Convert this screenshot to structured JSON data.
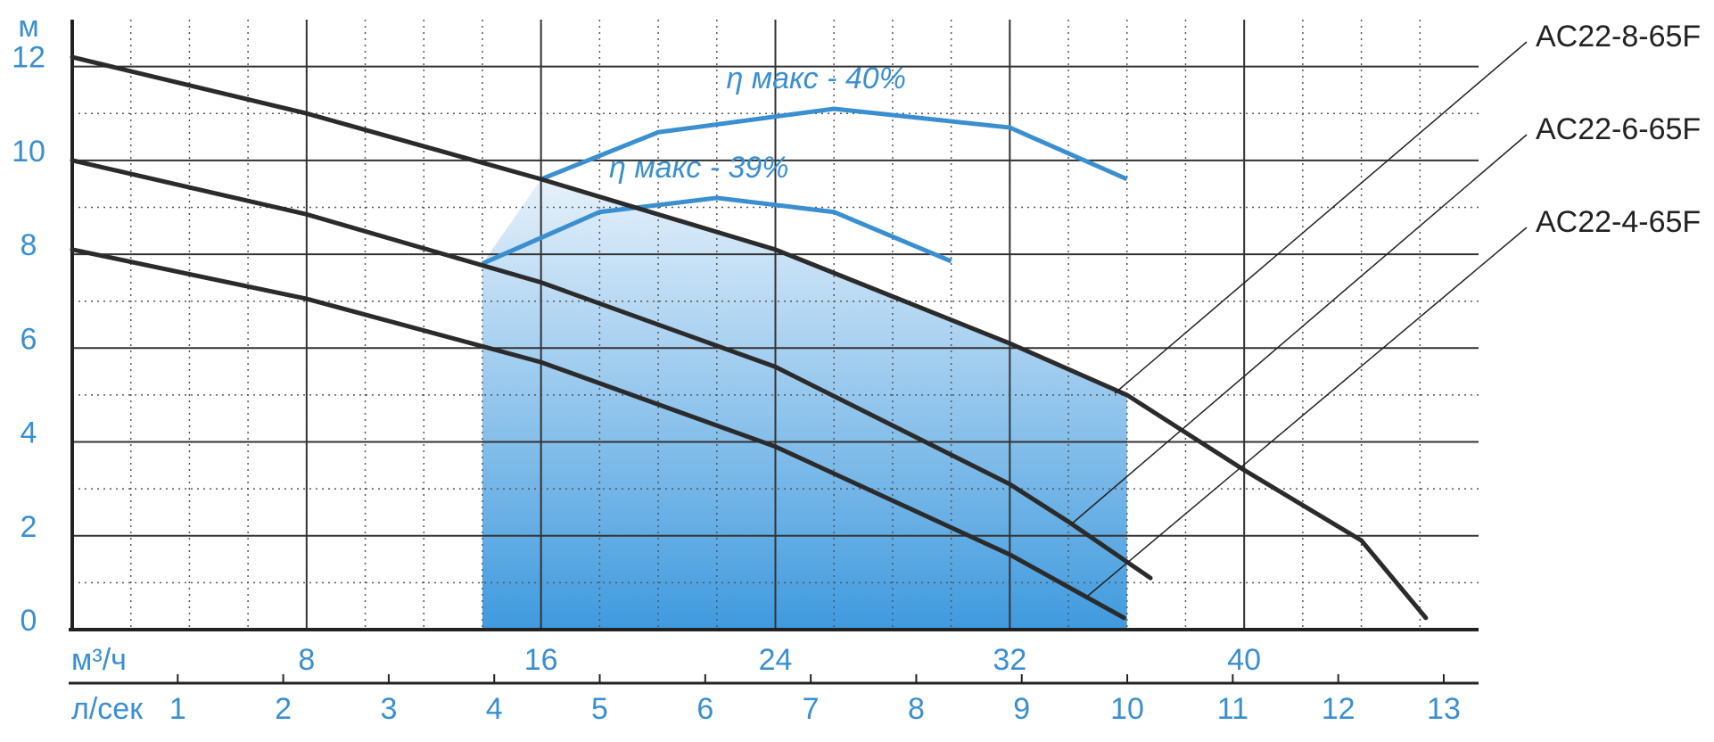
{
  "chart_data": {
    "type": "line",
    "y_label": "м",
    "x_label": "м³/ч",
    "x2_label": "л/сек",
    "xlim": [
      0,
      48
    ],
    "ylim": [
      0,
      13
    ],
    "x2lim": [
      0,
      13.33
    ],
    "xticks": [
      8,
      16,
      24,
      32,
      40
    ],
    "yticks": [
      0,
      2,
      4,
      6,
      8,
      10,
      12
    ],
    "x2ticks": [
      1,
      2,
      3,
      4,
      5,
      6,
      7,
      8,
      9,
      10,
      11,
      12,
      13
    ],
    "xminor": 2,
    "yminor": 1,
    "grid": true,
    "series": [
      {
        "name": "AC22-8-65F",
        "color": "#2b2b2b",
        "x": [
          0,
          8,
          16,
          24,
          32,
          36,
          40,
          44,
          46.2
        ],
        "values": [
          12.2,
          11.0,
          9.6,
          8.1,
          6.1,
          5.0,
          3.4,
          1.9,
          0.25
        ]
      },
      {
        "name": "AC22-6-65F",
        "color": "#2b2b2b",
        "x": [
          0,
          8,
          16,
          24,
          32,
          34,
          36.8
        ],
        "values": [
          10.0,
          8.85,
          7.4,
          5.6,
          3.1,
          2.3,
          1.1
        ]
      },
      {
        "name": "AC22-4-65F",
        "color": "#2b2b2b",
        "x": [
          0,
          8,
          16,
          24,
          32,
          35.9
        ],
        "values": [
          8.1,
          7.05,
          5.7,
          3.9,
          1.6,
          0.25
        ]
      }
    ],
    "efficiency": [
      {
        "label": "η макс - 40%",
        "color": "#3a8fd0",
        "x": [
          16,
          20,
          26,
          32,
          36
        ],
        "values": [
          9.6,
          10.6,
          11.1,
          10.7,
          9.6
        ]
      },
      {
        "label": "η макс - 39%",
        "color": "#3a8fd0",
        "x": [
          14,
          18,
          22,
          26,
          30
        ],
        "values": [
          7.8,
          8.9,
          9.2,
          8.9,
          7.85
        ]
      }
    ],
    "operating_range": [
      14,
      36
    ]
  }
}
